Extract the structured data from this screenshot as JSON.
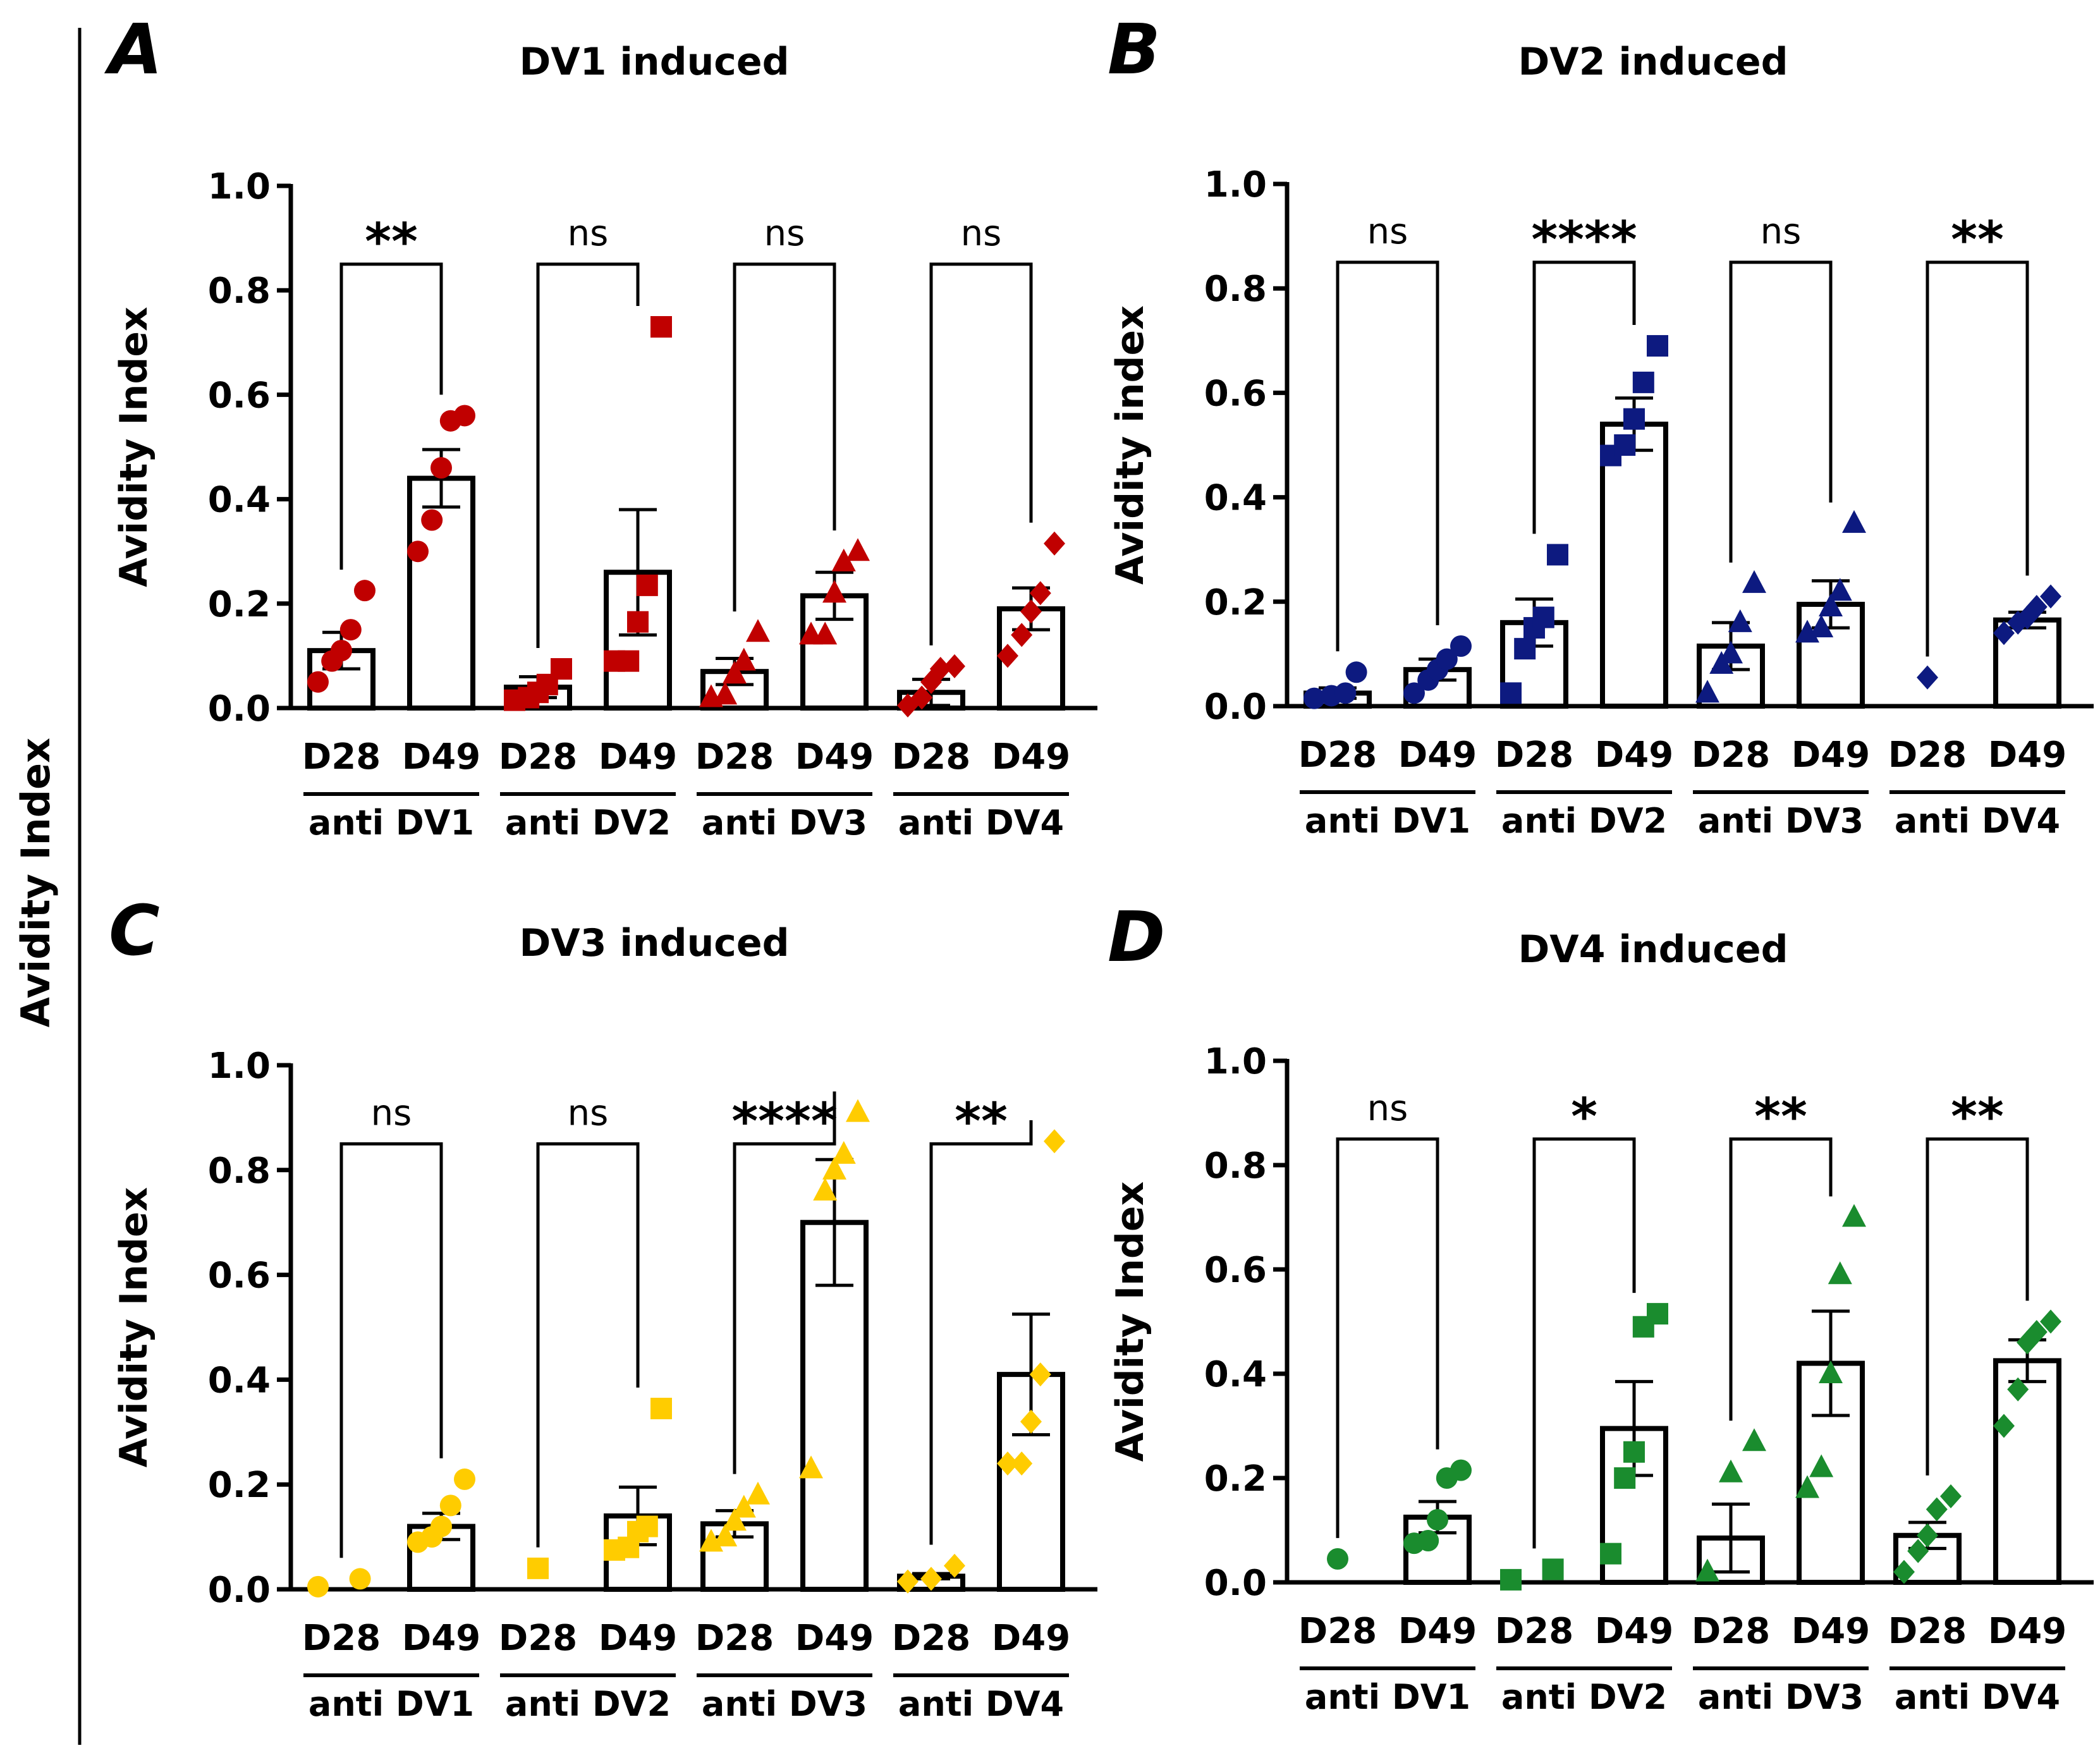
{
  "figure": {
    "side_label": "Avidity Index",
    "xtick_labels": [
      "D28",
      "D49"
    ]
  },
  "chart_data": [
    {
      "type": "bar",
      "panel_letter": "A",
      "title": "DV1 induced",
      "ylabel": "Avidity Index",
      "ylim": [
        0,
        1.0
      ],
      "yticks": [
        "0.0",
        "0.2",
        "0.4",
        "0.6",
        "0.8",
        "1.0"
      ],
      "marker": "circle-square-triangle-diamond",
      "color": "#c00000",
      "groups": [
        {
          "label": "anti DV1",
          "significance": "**",
          "marker": "circle",
          "bars": [
            {
              "category": "D28",
              "mean": 0.11,
              "sem": 0.035,
              "points": [
                0.05,
                0.09,
                0.11,
                0.15,
                0.225
              ]
            },
            {
              "category": "D49",
              "mean": 0.44,
              "sem": 0.055,
              "points": [
                0.3,
                0.36,
                0.46,
                0.55,
                0.56
              ]
            }
          ]
        },
        {
          "label": "anti DV2",
          "significance": "ns",
          "marker": "square",
          "bars": [
            {
              "category": "D28",
              "mean": 0.04,
              "sem": 0.02,
              "points": [
                0.015,
                0.02,
                0.03,
                0.045,
                0.075
              ]
            },
            {
              "category": "D49",
              "mean": 0.26,
              "sem": 0.12,
              "points": [
                0.09,
                0.09,
                0.165,
                0.235,
                0.73
              ]
            }
          ]
        },
        {
          "label": "anti DV3",
          "significance": "ns",
          "marker": "triangle",
          "bars": [
            {
              "category": "D28",
              "mean": 0.07,
              "sem": 0.025,
              "points": [
                0.02,
                0.025,
                0.065,
                0.09,
                0.145
              ]
            },
            {
              "category": "D49",
              "mean": 0.215,
              "sem": 0.045,
              "points": [
                0.14,
                0.14,
                0.22,
                0.28,
                0.3
              ]
            }
          ]
        },
        {
          "label": "anti DV4",
          "significance": "ns",
          "marker": "diamond",
          "bars": [
            {
              "category": "D28",
              "mean": 0.03,
              "sem": 0.025,
              "points": [
                0.005,
                0.02,
                0.05,
                0.075,
                0.08
              ]
            },
            {
              "category": "D49",
              "mean": 0.19,
              "sem": 0.04,
              "points": [
                0.1,
                0.14,
                0.185,
                0.22,
                0.315
              ]
            }
          ]
        }
      ]
    },
    {
      "type": "bar",
      "panel_letter": "B",
      "title": "DV2 induced",
      "ylabel": "Avidity index",
      "ylim": [
        0,
        1.0
      ],
      "yticks": [
        "0.0",
        "0.2",
        "0.4",
        "0.6",
        "0.8",
        "1.0"
      ],
      "color": "#0d1a80",
      "groups": [
        {
          "label": "anti DV1",
          "significance": "ns",
          "marker": "circle",
          "bars": [
            {
              "category": "D28",
              "mean": 0.025,
              "sem": 0.01,
              "points": [
                0.015,
                0.02,
                0.025,
                0.065
              ]
            },
            {
              "category": "D49",
              "mean": 0.07,
              "sem": 0.02,
              "points": [
                0.025,
                0.05,
                0.07,
                0.09,
                0.115
              ]
            }
          ]
        },
        {
          "label": "anti DV2",
          "significance": "****",
          "marker": "square",
          "bars": [
            {
              "category": "D28",
              "mean": 0.16,
              "sem": 0.045,
              "points": [
                0.025,
                0.11,
                0.15,
                0.17,
                0.29
              ]
            },
            {
              "category": "D49",
              "mean": 0.54,
              "sem": 0.05,
              "points": [
                0.48,
                0.5,
                0.55,
                0.62,
                0.69
              ]
            }
          ]
        },
        {
          "label": "anti DV3",
          "significance": "ns",
          "marker": "triangle",
          "bars": [
            {
              "category": "D28",
              "mean": 0.115,
              "sem": 0.045,
              "points": [
                0.025,
                0.08,
                0.1,
                0.16,
                0.235
              ]
            },
            {
              "category": "D49",
              "mean": 0.195,
              "sem": 0.045,
              "points": [
                0.14,
                0.15,
                0.19,
                0.22,
                0.35
              ]
            }
          ]
        },
        {
          "label": "anti DV4",
          "significance": "**",
          "marker": "diamond",
          "bars": [
            {
              "category": "D28",
              "mean": 0.0,
              "sem": 0.0,
              "points": [
                0.055
              ]
            },
            {
              "category": "D49",
              "mean": 0.165,
              "sem": 0.015,
              "points": [
                0.14,
                0.16,
                0.17,
                0.19,
                0.21
              ]
            }
          ]
        }
      ]
    },
    {
      "type": "bar",
      "panel_letter": "C",
      "title": "DV3 induced",
      "ylabel": "Avidity Index",
      "ylim": [
        0,
        1.0
      ],
      "yticks": [
        "0.0",
        "0.2",
        "0.4",
        "0.6",
        "0.8",
        "1.0"
      ],
      "color": "#ffcc00",
      "groups": [
        {
          "label": "anti DV1",
          "significance": "ns",
          "marker": "circle",
          "bars": [
            {
              "category": "D28",
              "mean": 0.0,
              "sem": 0.0,
              "points": [
                0.005,
                0.02
              ]
            },
            {
              "category": "D49",
              "mean": 0.12,
              "sem": 0.025,
              "points": [
                0.09,
                0.1,
                0.12,
                0.16,
                0.21
              ]
            }
          ]
        },
        {
          "label": "anti DV2",
          "significance": "ns",
          "marker": "square",
          "bars": [
            {
              "category": "D28",
              "mean": 0.0,
              "sem": 0.0,
              "points": [
                0.04
              ]
            },
            {
              "category": "D49",
              "mean": 0.14,
              "sem": 0.055,
              "points": [
                0.075,
                0.08,
                0.11,
                0.12,
                0.345
              ]
            }
          ]
        },
        {
          "label": "anti DV3",
          "significance": "****",
          "marker": "triangle",
          "bars": [
            {
              "category": "D28",
              "mean": 0.125,
              "sem": 0.025,
              "points": [
                0.09,
                0.1,
                0.13,
                0.155,
                0.18
              ]
            },
            {
              "category": "D49",
              "mean": 0.7,
              "sem": 0.12,
              "points": [
                0.23,
                0.76,
                0.8,
                0.83,
                0.91
              ]
            }
          ]
        },
        {
          "label": "anti DV4",
          "significance": "**",
          "marker": "diamond",
          "bars": [
            {
              "category": "D28",
              "mean": 0.025,
              "sem": 0.005,
              "points": [
                0.015,
                0.02,
                0.045
              ]
            },
            {
              "category": "D49",
              "mean": 0.41,
              "sem": 0.115,
              "points": [
                0.24,
                0.24,
                0.32,
                0.41,
                0.855
              ]
            }
          ]
        }
      ]
    },
    {
      "type": "bar",
      "panel_letter": "D",
      "title": "DV4 induced",
      "ylabel": "Avidity Index",
      "ylim": [
        0,
        1.0
      ],
      "yticks": [
        "0.0",
        "0.2",
        "0.4",
        "0.6",
        "0.8",
        "1.0"
      ],
      "color": "#1a8c2e",
      "groups": [
        {
          "label": "anti DV1",
          "significance": "ns",
          "marker": "circle",
          "bars": [
            {
              "category": "D28",
              "mean": 0.0,
              "sem": 0.0,
              "points": [
                0.045
              ]
            },
            {
              "category": "D49",
              "mean": 0.125,
              "sem": 0.03,
              "points": [
                0.075,
                0.08,
                0.12,
                0.2,
                0.215
              ]
            }
          ]
        },
        {
          "label": "anti DV2",
          "significance": "*",
          "marker": "square",
          "bars": [
            {
              "category": "D28",
              "mean": 0.0,
              "sem": 0.0,
              "points": [
                0.005,
                0.025
              ]
            },
            {
              "category": "D49",
              "mean": 0.295,
              "sem": 0.09,
              "points": [
                0.055,
                0.2,
                0.25,
                0.49,
                0.515
              ]
            }
          ]
        },
        {
          "label": "anti DV3",
          "significance": "**",
          "marker": "triangle",
          "bars": [
            {
              "category": "D28",
              "mean": 0.085,
              "sem": 0.065,
              "points": [
                0.02,
                0.21,
                0.27
              ]
            },
            {
              "category": "D49",
              "mean": 0.42,
              "sem": 0.1,
              "points": [
                0.18,
                0.22,
                0.4,
                0.59,
                0.7
              ]
            }
          ]
        },
        {
          "label": "anti DV4",
          "significance": "**",
          "marker": "diamond",
          "bars": [
            {
              "category": "D28",
              "mean": 0.09,
              "sem": 0.025,
              "points": [
                0.02,
                0.06,
                0.09,
                0.14,
                0.165
              ]
            },
            {
              "category": "D49",
              "mean": 0.425,
              "sem": 0.04,
              "points": [
                0.3,
                0.37,
                0.46,
                0.48,
                0.5
              ]
            }
          ]
        }
      ]
    }
  ]
}
